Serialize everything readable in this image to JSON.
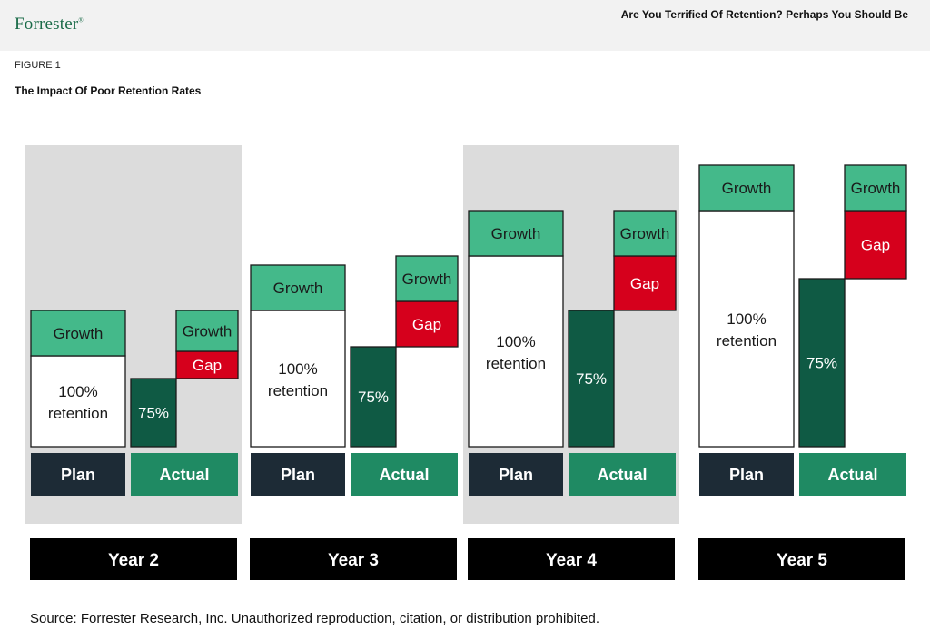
{
  "header": {
    "logo": "Forrester",
    "logo_mark": "®",
    "report_title": "Are You Terrified Of Retention? Perhaps You Should Be"
  },
  "figure": {
    "label": "FIGURE 1",
    "title": "The Impact Of Poor Retention Rates"
  },
  "footer": {
    "source": "Source: Forrester Research, Inc. Unauthorized reproduction, citation, or distribution prohibited."
  },
  "colors": {
    "growth": "#44b98a",
    "gap": "#d6001c",
    "retained": "#0f5a44",
    "plan_tile": "#1d2b36",
    "actual_tile": "#1f8a63",
    "year_tile": "#000000",
    "panel": "#dcdcdc"
  },
  "chart_data": {
    "type": "bar",
    "stacked": true,
    "categories": [
      "Year 2",
      "Year 3",
      "Year 4",
      "Year 5"
    ],
    "bar_labels": [
      "Plan",
      "Actual"
    ],
    "segment_labels": {
      "plan_base": "100% retention",
      "plan_base_lines": [
        "100%",
        "retention"
      ],
      "growth": "Growth",
      "gap": "Gap",
      "actual_base": "75%"
    },
    "years": [
      {
        "name": "Year 2",
        "plan": {
          "retention": 2.0,
          "growth": 1.0
        },
        "actual": {
          "retention": 1.5,
          "gap": 0.6,
          "growth": 0.9
        }
      },
      {
        "name": "Year 3",
        "plan": {
          "retention": 3.0,
          "growth": 1.0
        },
        "actual": {
          "retention": 2.2,
          "gap": 1.0,
          "growth": 1.0
        }
      },
      {
        "name": "Year 4",
        "plan": {
          "retention": 4.2,
          "growth": 1.0
        },
        "actual": {
          "retention": 3.0,
          "gap": 1.2,
          "growth": 1.0
        }
      },
      {
        "name": "Year 5",
        "plan": {
          "retention": 5.2,
          "growth": 1.0
        },
        "actual": {
          "retention": 3.7,
          "gap": 1.5,
          "growth": 1.0
        }
      }
    ],
    "shaded_years": [
      "Year 2",
      "Year 4"
    ],
    "xlabel": "",
    "ylabel": "",
    "grid": false,
    "legend": "none"
  }
}
